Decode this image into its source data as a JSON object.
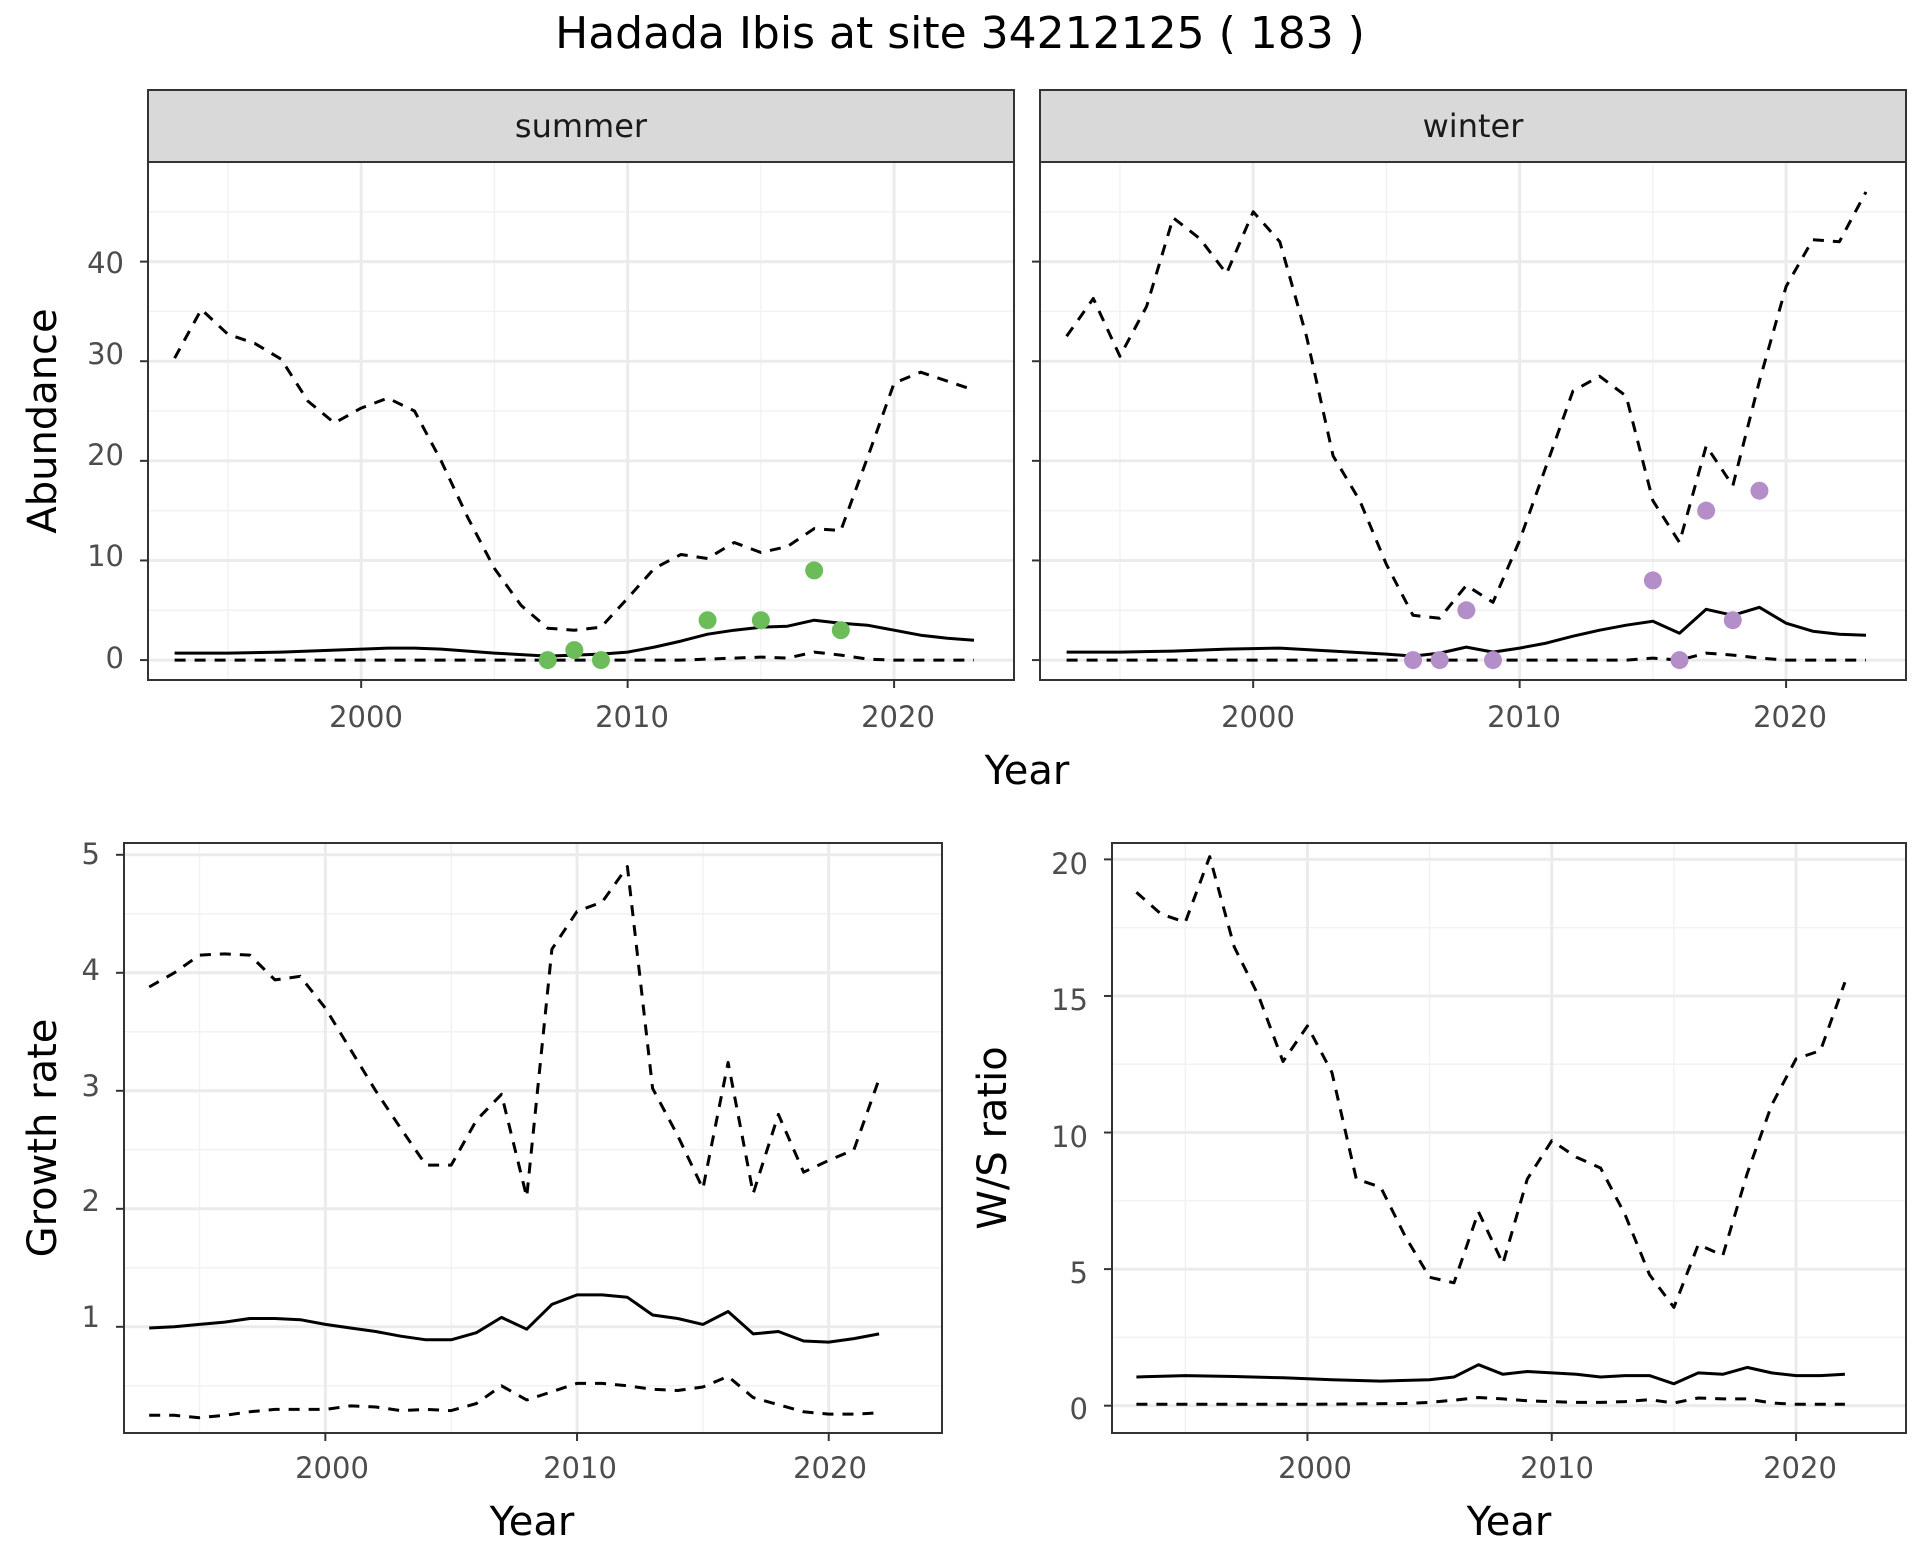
{
  "title": "Hadada Ibis at site 34212125 ( 183 )",
  "colors": {
    "summer_points": "#6cbd5a",
    "winter_points": "#b48ec8",
    "line": "#000000",
    "grid": "#ebebeb",
    "strip": "#d9d9d9"
  },
  "chart_data": [
    {
      "type": "line",
      "panel": "summer",
      "facet_label": "summer",
      "xlabel": "Year",
      "ylabel": "Abundance",
      "xlim": [
        1992,
        2024.5
      ],
      "ylim": [
        -2,
        50
      ],
      "xticks": [
        2000,
        2010,
        2020
      ],
      "xtick_labels": [
        "2000",
        "2010",
        "2020"
      ],
      "yticks": [
        0,
        10,
        20,
        30,
        40
      ],
      "ytick_labels": [
        "0",
        "10",
        "20",
        "30",
        "40"
      ],
      "grid": true,
      "series": [
        {
          "style": "solid",
          "x": [
            1993,
            1995,
            1997,
            1999,
            2001,
            2002,
            2003,
            2005,
            2007,
            2008,
            2009,
            2010,
            2011,
            2012,
            2013,
            2014,
            2015,
            2016,
            2017,
            2018,
            2019,
            2020,
            2021,
            2022,
            2023
          ],
          "y": [
            0.7,
            0.7,
            0.8,
            1.0,
            1.2,
            1.2,
            1.1,
            0.7,
            0.4,
            0.5,
            0.6,
            0.8,
            1.3,
            1.9,
            2.6,
            3.0,
            3.3,
            3.4,
            4.0,
            3.7,
            3.5,
            3.0,
            2.5,
            2.2,
            2.0
          ]
        },
        {
          "style": "dashed",
          "x": [
            1993,
            1994,
            1995,
            1996,
            1997,
            1998,
            1999,
            2000,
            2001,
            2002,
            2003,
            2004,
            2005,
            2006,
            2007,
            2008,
            2009,
            2010,
            2011,
            2012,
            2013,
            2014,
            2015,
            2016,
            2017,
            2018,
            2019,
            2020,
            2021,
            2023
          ],
          "y": [
            30.3,
            35.2,
            32.7,
            31.8,
            30.2,
            26.0,
            23.8,
            25.3,
            26.3,
            25.0,
            20.0,
            14.3,
            9.2,
            5.5,
            3.2,
            3.0,
            3.3,
            6.2,
            9.2,
            10.6,
            10.2,
            11.8,
            10.8,
            11.4,
            13.2,
            13.0,
            20.3,
            27.8,
            28.9,
            27.1
          ]
        },
        {
          "style": "dashed",
          "x": [
            1993,
            2005,
            2012,
            2015,
            2016,
            2017,
            2018,
            2019,
            2020,
            2023
          ],
          "y": [
            0,
            0,
            0,
            0.3,
            0.2,
            0.8,
            0.5,
            0.1,
            0,
            0
          ]
        }
      ],
      "points": {
        "x": [
          2007,
          2008,
          2009,
          2013,
          2015,
          2017,
          2018
        ],
        "y": [
          0,
          1,
          0,
          4,
          4,
          9,
          3
        ]
      }
    },
    {
      "type": "line",
      "panel": "winter",
      "facet_label": "winter",
      "xlabel": "Year",
      "ylabel": "Abundance",
      "xlim": [
        1992,
        2024.5
      ],
      "ylim": [
        -2,
        50
      ],
      "xticks": [
        2000,
        2010,
        2020
      ],
      "xtick_labels": [
        "2000",
        "2010",
        "2020"
      ],
      "yticks": [
        0,
        10,
        20,
        30,
        40
      ],
      "grid": true,
      "series": [
        {
          "style": "solid",
          "x": [
            1993,
            1995,
            1997,
            1999,
            2001,
            2003,
            2005,
            2006,
            2007,
            2008,
            2009,
            2010,
            2011,
            2012,
            2013,
            2014,
            2015,
            2016,
            2017,
            2018,
            2019,
            2020,
            2021,
            2022,
            2023
          ],
          "y": [
            0.8,
            0.8,
            0.9,
            1.1,
            1.2,
            0.9,
            0.6,
            0.4,
            0.7,
            1.3,
            0.8,
            1.2,
            1.7,
            2.4,
            3.0,
            3.5,
            3.9,
            2.7,
            5.1,
            4.5,
            5.3,
            3.7,
            2.9,
            2.6,
            2.5
          ]
        },
        {
          "style": "dashed",
          "x": [
            1993,
            1994,
            1995,
            1996,
            1997,
            1998,
            1999,
            2000,
            2001,
            2002,
            2003,
            2004,
            2005,
            2006,
            2007,
            2008,
            2009,
            2010,
            2011,
            2012,
            2013,
            2014,
            2015,
            2016,
            2017,
            2018,
            2019,
            2020,
            2021,
            2022,
            2023
          ],
          "y": [
            32.5,
            36.3,
            30.5,
            35.5,
            44.4,
            42.3,
            38.8,
            45.0,
            42.0,
            32.5,
            20.5,
            16.0,
            9.6,
            4.5,
            4.2,
            7.5,
            5.8,
            12.0,
            19.5,
            27.0,
            28.5,
            26.5,
            16.0,
            11.8,
            21.5,
            17.5,
            28.0,
            37.5,
            42.2,
            42.0,
            47.0
          ]
        },
        {
          "style": "dashed",
          "x": [
            1993,
            2005,
            2014,
            2015,
            2016,
            2017,
            2018,
            2019,
            2020,
            2023
          ],
          "y": [
            0,
            0,
            0,
            0.2,
            0,
            0.7,
            0.5,
            0.2,
            0,
            0
          ]
        }
      ],
      "points": {
        "x": [
          2006,
          2007,
          2008,
          2009,
          2015,
          2016,
          2017,
          2018,
          2019
        ],
        "y": [
          0,
          0,
          5,
          0,
          8,
          0,
          15,
          4,
          17
        ]
      }
    },
    {
      "type": "line",
      "panel": "growth",
      "xlabel": "Year",
      "ylabel": "Growth rate",
      "xlim": [
        1992,
        2024.5
      ],
      "ylim": [
        0.1,
        5.1
      ],
      "xticks": [
        2000,
        2010,
        2020
      ],
      "xtick_labels": [
        "2000",
        "2010",
        "2020"
      ],
      "yticks": [
        1,
        2,
        3,
        4,
        5
      ],
      "ytick_labels": [
        "1",
        "2",
        "3",
        "4",
        "5"
      ],
      "grid": true,
      "series": [
        {
          "style": "solid",
          "x": [
            1993,
            1994,
            1995,
            1996,
            1997,
            1998,
            1999,
            2000,
            2001,
            2002,
            2003,
            2004,
            2005,
            2006,
            2007,
            2008,
            2009,
            2010,
            2011,
            2012,
            2013,
            2014,
            2015,
            2016,
            2017,
            2018,
            2019,
            2020,
            2021,
            2022
          ],
          "y": [
            0.99,
            1.0,
            1.02,
            1.04,
            1.07,
            1.07,
            1.06,
            1.02,
            0.99,
            0.96,
            0.92,
            0.89,
            0.89,
            0.95,
            1.08,
            0.98,
            1.19,
            1.27,
            1.27,
            1.25,
            1.1,
            1.07,
            1.02,
            1.13,
            0.94,
            0.96,
            0.88,
            0.87,
            0.9,
            0.94
          ]
        },
        {
          "style": "dashed",
          "x": [
            1993,
            1994,
            1995,
            1996,
            1997,
            1998,
            1999,
            2000,
            2001,
            2002,
            2003,
            2004,
            2005,
            2006,
            2007,
            2008,
            2009,
            2010,
            2011,
            2012,
            2013,
            2014,
            2015,
            2016,
            2017,
            2018,
            2019,
            2020,
            2021,
            2022
          ],
          "y": [
            3.88,
            4.0,
            4.15,
            4.16,
            4.15,
            3.94,
            3.97,
            3.7,
            3.35,
            3.0,
            2.68,
            2.37,
            2.37,
            2.75,
            2.97,
            2.1,
            4.2,
            4.52,
            4.6,
            4.9,
            3.02,
            2.62,
            2.17,
            3.24,
            2.13,
            2.8,
            2.31,
            2.41,
            2.5,
            3.1
          ]
        },
        {
          "style": "dashed",
          "x": [
            1993,
            1994,
            1995,
            1996,
            1997,
            1998,
            1999,
            2000,
            2001,
            2002,
            2003,
            2004,
            2005,
            2006,
            2007,
            2008,
            2009,
            2010,
            2011,
            2012,
            2013,
            2014,
            2015,
            2016,
            2017,
            2018,
            2019,
            2020,
            2021,
            2022
          ],
          "y": [
            0.25,
            0.25,
            0.23,
            0.25,
            0.28,
            0.3,
            0.3,
            0.3,
            0.33,
            0.32,
            0.29,
            0.3,
            0.29,
            0.35,
            0.5,
            0.38,
            0.45,
            0.52,
            0.52,
            0.5,
            0.47,
            0.46,
            0.49,
            0.58,
            0.4,
            0.34,
            0.28,
            0.26,
            0.26,
            0.27
          ]
        }
      ]
    },
    {
      "type": "line",
      "panel": "ratio",
      "xlabel": "Year",
      "ylabel": "W/S ratio",
      "xlim": [
        1992,
        2024.5
      ],
      "ylim": [
        -1.0,
        20.6
      ],
      "xticks": [
        2000,
        2010,
        2020
      ],
      "xtick_labels": [
        "2000",
        "2010",
        "2020"
      ],
      "yticks": [
        0,
        5,
        10,
        15,
        20
      ],
      "ytick_labels": [
        "0",
        "5",
        "10",
        "15",
        "20"
      ],
      "grid": true,
      "series": [
        {
          "style": "solid",
          "x": [
            1993,
            1995,
            1997,
            1999,
            2001,
            2003,
            2005,
            2006,
            2007,
            2008,
            2009,
            2010,
            2011,
            2012,
            2013,
            2014,
            2015,
            2016,
            2017,
            2018,
            2019,
            2020,
            2021,
            2022
          ],
          "y": [
            1.05,
            1.1,
            1.07,
            1.02,
            0.95,
            0.9,
            0.95,
            1.05,
            1.5,
            1.15,
            1.25,
            1.2,
            1.15,
            1.05,
            1.1,
            1.1,
            0.8,
            1.2,
            1.15,
            1.4,
            1.2,
            1.1,
            1.1,
            1.15
          ]
        },
        {
          "style": "dashed",
          "x": [
            1993,
            1994,
            1995,
            1996,
            1997,
            1998,
            1999,
            2000,
            2001,
            2002,
            2003,
            2004,
            2005,
            2006,
            2007,
            2008,
            2009,
            2010,
            2011,
            2012,
            2013,
            2014,
            2015,
            2016,
            2017,
            2018,
            2019,
            2020,
            2021,
            2022
          ],
          "y": [
            18.8,
            18.0,
            17.7,
            20.1,
            16.8,
            15.0,
            12.6,
            13.9,
            12.2,
            8.3,
            8.0,
            6.2,
            4.7,
            4.5,
            7.1,
            5.2,
            8.3,
            9.7,
            9.1,
            8.7,
            7.0,
            4.8,
            3.6,
            5.9,
            5.5,
            8.5,
            11.0,
            12.7,
            13.0,
            15.5
          ]
        },
        {
          "style": "dashed",
          "x": [
            1993,
            2000,
            2004,
            2005,
            2006,
            2007,
            2008,
            2009,
            2010,
            2011,
            2012,
            2013,
            2014,
            2015,
            2016,
            2017,
            2018,
            2019,
            2020,
            2021,
            2022
          ],
          "y": [
            0.05,
            0.05,
            0.08,
            0.12,
            0.2,
            0.3,
            0.25,
            0.18,
            0.15,
            0.12,
            0.12,
            0.15,
            0.22,
            0.1,
            0.28,
            0.25,
            0.25,
            0.1,
            0.05,
            0.05,
            0.05
          ]
        }
      ]
    }
  ],
  "panels": {
    "summer": {
      "strip": "summer"
    },
    "winter": {
      "strip": "winter"
    },
    "top_xlabel": "Year",
    "top_ylabel": "Abundance",
    "growth_xlabel": "Year",
    "growth_ylabel": "Growth rate",
    "ratio_xlabel": "Year",
    "ratio_ylabel": "W/S ratio",
    "xticks": [
      "2000",
      "2010",
      "2020"
    ],
    "abund_yticks": [
      "0",
      "10",
      "20",
      "30",
      "40"
    ],
    "growth_yticks": [
      "1",
      "2",
      "3",
      "4",
      "5"
    ],
    "ratio_yticks": [
      "0",
      "5",
      "10",
      "15",
      "20"
    ]
  }
}
